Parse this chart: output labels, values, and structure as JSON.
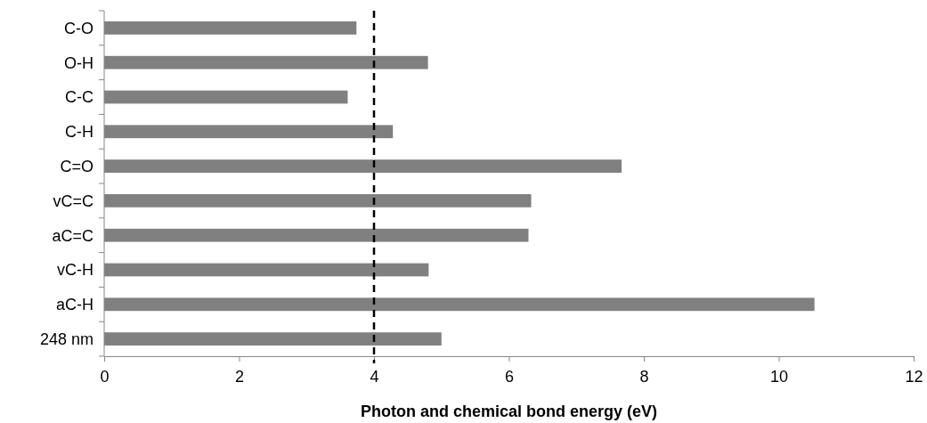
{
  "chart_data": {
    "type": "bar",
    "orientation": "horizontal",
    "xlabel": "Photon and chemical bond energy (eV)",
    "categories": [
      "C-O",
      "O-H",
      "C-C",
      "C-H",
      "C=O",
      "vC=C",
      "aC=C",
      "vC-H",
      "aC-H",
      "248 nm"
    ],
    "values": [
      3.74,
      4.8,
      3.61,
      4.28,
      7.67,
      6.33,
      6.29,
      4.81,
      10.53,
      5.0
    ],
    "color": "#808080",
    "xlim": [
      0,
      12
    ],
    "xticks": [
      0,
      2,
      4,
      6,
      8,
      10,
      12
    ],
    "grid": false,
    "ref_lines": [
      {
        "axis": "x",
        "value": 4,
        "color": "#000000",
        "line_style": "dashed"
      }
    ]
  }
}
